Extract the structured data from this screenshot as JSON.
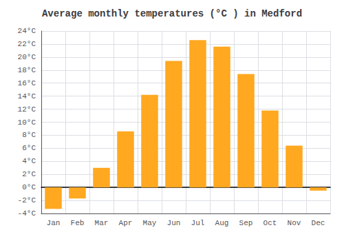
{
  "chart_data": {
    "type": "bar",
    "title": "Average monthly temperatures (°C ) in Medford",
    "categories": [
      "Jan",
      "Feb",
      "Mar",
      "Apr",
      "May",
      "Jun",
      "Jul",
      "Aug",
      "Sep",
      "Oct",
      "Nov",
      "Dec"
    ],
    "values": [
      -3.3,
      -1.7,
      3.0,
      8.6,
      14.2,
      19.4,
      22.6,
      21.6,
      17.4,
      11.8,
      6.4,
      -0.5
    ],
    "color": "#FFA820",
    "ylim": [
      -4,
      24
    ],
    "yticks": [
      {
        "value": -4,
        "label": "-4°C"
      },
      {
        "value": -2,
        "label": "-2°C"
      },
      {
        "value": 0,
        "label": "0°C"
      },
      {
        "value": 2,
        "label": "2°C"
      },
      {
        "value": 4,
        "label": "4°C"
      },
      {
        "value": 6,
        "label": "6°C"
      },
      {
        "value": 8,
        "label": "8°C"
      },
      {
        "value": 10,
        "label": "10°C"
      },
      {
        "value": 12,
        "label": "12°C"
      },
      {
        "value": 14,
        "label": "14°C"
      },
      {
        "value": 16,
        "label": "16°C"
      },
      {
        "value": 18,
        "label": "18°C"
      },
      {
        "value": 20,
        "label": "20°C"
      },
      {
        "value": 22,
        "label": "22°C"
      },
      {
        "value": 24,
        "label": "24°C"
      }
    ],
    "grid": true
  }
}
